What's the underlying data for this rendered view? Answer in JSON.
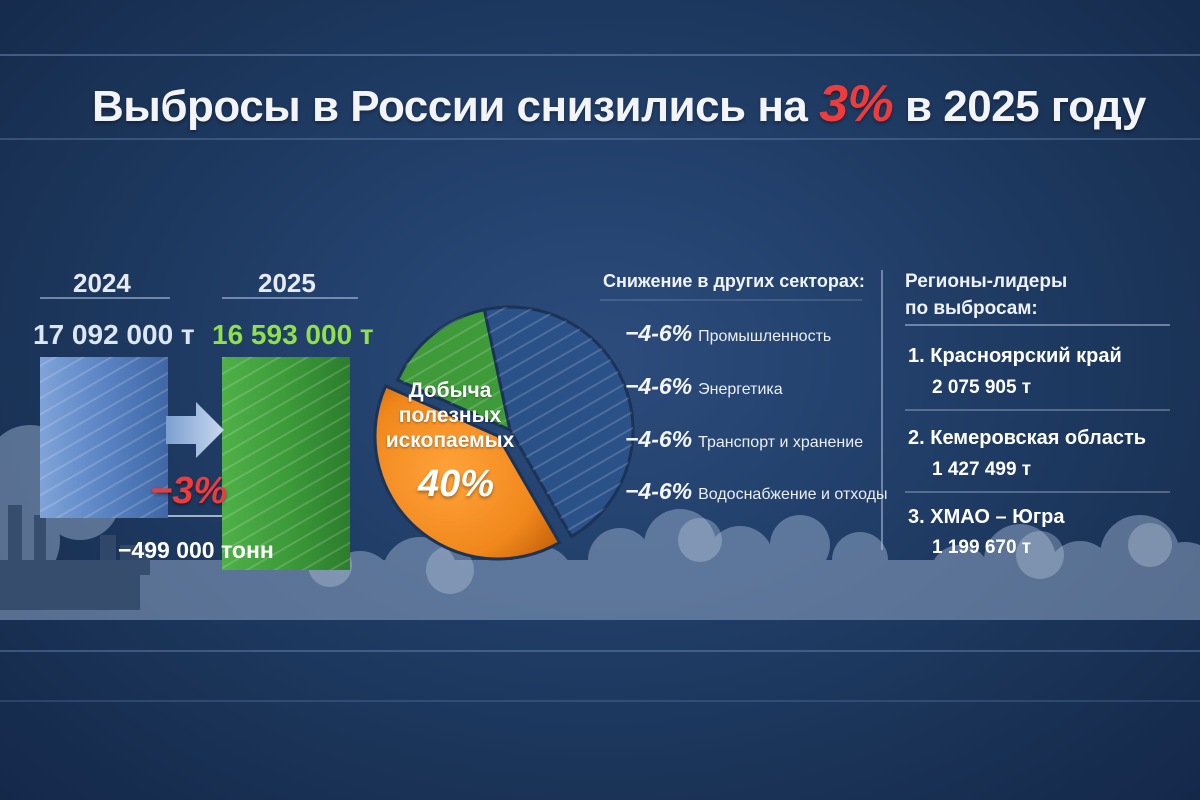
{
  "title": {
    "prefix": "Выбросы в России снизились на ",
    "highlight": "3%",
    "suffix": " в 2025 году"
  },
  "colors": {
    "bar_2024": "#5b84c4",
    "bar_2025": "#3d9b3a",
    "value_2025": "#8fe04a",
    "pie_orange": "#f0871c",
    "pie_green": "#3f9a3a",
    "pie_blue": "#2b5189",
    "accent_red": "#ee3b3b"
  },
  "chart_data": [
    {
      "type": "bar",
      "categories": [
        "2024",
        "2025"
      ],
      "values": [
        17092000,
        16593000
      ],
      "value_labels": [
        "17 092 000 т",
        "16 593 000 т"
      ],
      "change_label": "−3%",
      "change_abs_label": "−499 000 тонн"
    },
    {
      "type": "pie",
      "slices": [
        {
          "label": "Добыча полезных ископаемых",
          "value": 40,
          "value_label": "40%"
        },
        {
          "label": "",
          "value": 15
        },
        {
          "label": "",
          "value": 45
        }
      ]
    }
  ],
  "sectors": {
    "heading": "Снижение в других секторах:",
    "items": [
      {
        "pct": "−4-6%",
        "name": "Промышленность"
      },
      {
        "pct": "−4-6%",
        "name": "Энергетика"
      },
      {
        "pct": "−4-6%",
        "name": "Транспорт и хранение"
      },
      {
        "pct": "−4-6%",
        "name": "Водоснабжение и отходы"
      }
    ]
  },
  "regions": {
    "heading_line1": "Регионы-лидеры",
    "heading_line2": "по выбросам:",
    "items": [
      {
        "name": "1. Красноярский край",
        "value": "2 075 905 т"
      },
      {
        "name": "2. Кемеровская область",
        "value": "1 427 499 т"
      },
      {
        "name": "3. ХМАО – Югра",
        "value": "1 199 670 т"
      }
    ]
  }
}
